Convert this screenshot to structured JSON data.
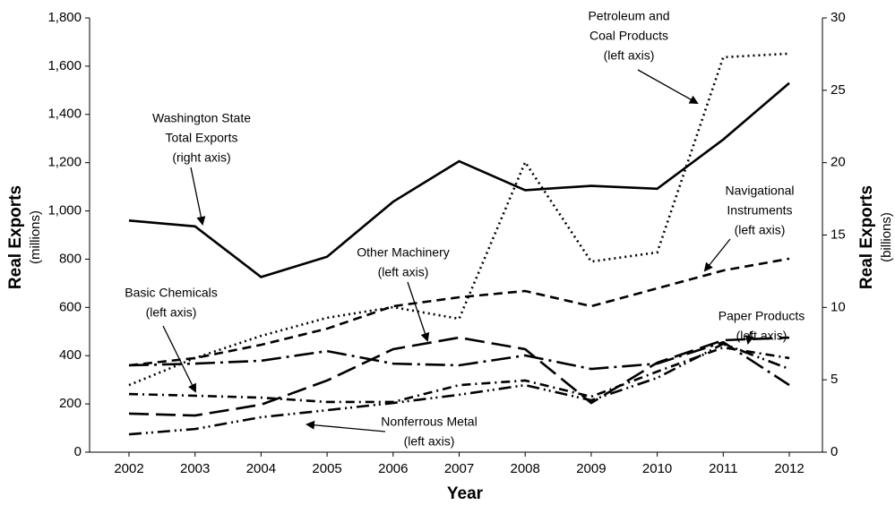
{
  "chart_data": {
    "type": "line",
    "x_label": "Year",
    "y_label": "Real Exports",
    "y_label_units": "(millions)",
    "y2_label": "Real Exports",
    "y2_label_units": "(billions)",
    "categories": [
      "2002",
      "2003",
      "2004",
      "2005",
      "2006",
      "2007",
      "2008",
      "2009",
      "2010",
      "2011",
      "2012"
    ],
    "ylim": [
      0,
      1800
    ],
    "yticks": [
      0,
      200,
      400,
      600,
      800,
      {
        "value": 1000,
        "label": "1,000"
      },
      {
        "value": 1200,
        "label": "1,200"
      },
      {
        "value": 1400,
        "label": "1,400"
      },
      {
        "value": 1600,
        "label": "1,600"
      },
      {
        "value": 1800,
        "label": "1,800"
      }
    ],
    "y2lim": [
      0,
      30
    ],
    "y2ticks": [
      0,
      5,
      10,
      15,
      20,
      25,
      30
    ],
    "series": [
      {
        "color": "#000000",
        "dash": "none",
        "axis": "y2",
        "values": [
          16.0,
          15.6,
          12.1,
          13.5,
          17.3,
          20.1,
          18.1,
          18.4,
          18.2,
          21.6,
          25.5
        ]
      },
      {
        "color": "#000000",
        "dash": "2,4",
        "values": [
          278,
          390,
          482,
          557,
          601,
          553,
          1202,
          790,
          828,
          1637,
          1652
        ]
      },
      {
        "color": "#000000",
        "dash": "10,6",
        "values": [
          360,
          390,
          445,
          512,
          605,
          642,
          668,
          605,
          679,
          753,
          802
        ]
      },
      {
        "color": "#000000",
        "dash": "22,8",
        "values": [
          160,
          152,
          197,
          297,
          427,
          475,
          427,
          204,
          371,
          464,
          475
        ]
      },
      {
        "color": "#000000",
        "dash": "22,6,3,6",
        "values": [
          360,
          367,
          379,
          419,
          367,
          360,
          401,
          345,
          367,
          456,
          278
        ]
      },
      {
        "color": "#000000",
        "dash": "10,5,2,5",
        "values": [
          241,
          234,
          226,
          208,
          208,
          278,
          297,
          230,
          334,
          434,
          390
        ]
      },
      {
        "color": "#000000",
        "dash": "14,5,2,4,2,5",
        "values": [
          74,
          96,
          145,
          174,
          204,
          238,
          278,
          215,
          308,
          449,
          345
        ]
      }
    ],
    "annotations": [
      {
        "lines": [
          "Washington State",
          "Total Exports",
          "(right axis)"
        ]
      },
      {
        "lines": [
          "Petroleum and",
          "Coal Products",
          "(left axis)"
        ]
      },
      {
        "lines": [
          "Navigational",
          "Instruments",
          "(left axis)"
        ]
      },
      {
        "lines": [
          "Other Machinery",
          "(left axis)"
        ]
      },
      {
        "lines": [
          "Basic Chemicals",
          "(left axis)"
        ]
      },
      {
        "lines": [
          "Paper Products",
          "(left axis)"
        ]
      },
      {
        "lines": [
          "Nonferrous Metal",
          "(left axis)"
        ]
      }
    ]
  }
}
